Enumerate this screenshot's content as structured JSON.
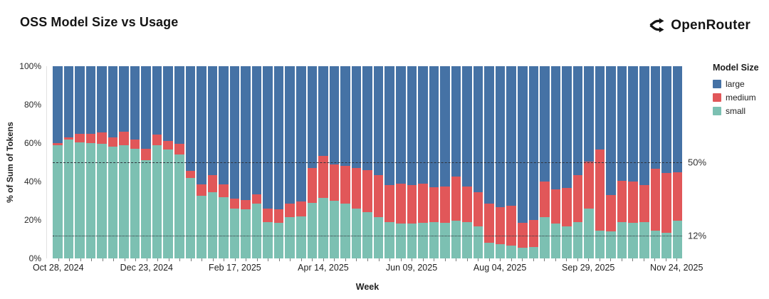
{
  "title": "OSS Model Size vs Usage",
  "logo": {
    "text": "OpenRouter"
  },
  "legend": {
    "title": "Model Size",
    "items": [
      {
        "label": "large",
        "color": "#4572a5"
      },
      {
        "label": "medium",
        "color": "#e15759"
      },
      {
        "label": "small",
        "color": "#7cc0b2"
      }
    ]
  },
  "y_axis": {
    "title": "% of Sum of Tokens",
    "ticks": [
      "0%",
      "20%",
      "40%",
      "60%",
      "80%",
      "100%"
    ],
    "tick_values": [
      0,
      20,
      40,
      60,
      80,
      100
    ]
  },
  "x_axis": {
    "title": "Week",
    "tick_labels": [
      "Oct 28, 2024",
      "Dec 23, 2024",
      "Feb 17, 2025",
      "Apr 14, 2025",
      "Jun 09, 2025",
      "Aug 04, 2025",
      "Sep 29, 2025",
      "Nov 24, 2025"
    ],
    "tick_week_indices": [
      0,
      8,
      16,
      24,
      32,
      40,
      48,
      56
    ]
  },
  "reference_lines": [
    {
      "value": 50,
      "label": "50%",
      "style": "dashed"
    },
    {
      "value": 12,
      "label": "12%",
      "style": "dotted"
    }
  ],
  "chart_data": {
    "type": "bar",
    "stacked": true,
    "stack_total": 100,
    "title": "OSS Model Size vs Usage",
    "xlabel": "Week",
    "ylabel": "% of Sum of Tokens",
    "ylim": [
      0,
      100
    ],
    "grid": false,
    "legend_position": "right",
    "x": [
      "2024-10-28",
      "2024-11-04",
      "2024-11-11",
      "2024-11-18",
      "2024-11-25",
      "2024-12-02",
      "2024-12-09",
      "2024-12-16",
      "2024-12-23",
      "2024-12-30",
      "2025-01-06",
      "2025-01-13",
      "2025-01-20",
      "2025-01-27",
      "2025-02-03",
      "2025-02-10",
      "2025-02-17",
      "2025-02-24",
      "2025-03-03",
      "2025-03-10",
      "2025-03-17",
      "2025-03-24",
      "2025-03-31",
      "2025-04-07",
      "2025-04-14",
      "2025-04-21",
      "2025-04-28",
      "2025-05-05",
      "2025-05-12",
      "2025-05-19",
      "2025-05-26",
      "2025-06-02",
      "2025-06-09",
      "2025-06-16",
      "2025-06-23",
      "2025-06-30",
      "2025-07-07",
      "2025-07-14",
      "2025-07-21",
      "2025-07-28",
      "2025-08-04",
      "2025-08-11",
      "2025-08-18",
      "2025-08-25",
      "2025-09-01",
      "2025-09-08",
      "2025-09-15",
      "2025-09-22",
      "2025-09-29",
      "2025-10-06",
      "2025-10-13",
      "2025-10-20",
      "2025-10-27",
      "2025-11-03",
      "2025-11-10",
      "2025-11-17",
      "2025-11-24"
    ],
    "series": [
      {
        "name": "small",
        "color": "#7cc0b2",
        "values": [
          59,
          62,
          60.5,
          60,
          59.5,
          58,
          59,
          57,
          51,
          59,
          56.5,
          54,
          42,
          32.5,
          34.5,
          32,
          26,
          25.5,
          28.5,
          19,
          18.5,
          21.5,
          22,
          29,
          31.5,
          30,
          28.5,
          26,
          24,
          21.5,
          19,
          18,
          18,
          18.5,
          19,
          18.5,
          19.5,
          19,
          16.5,
          8,
          7.5,
          6.5,
          5.5,
          6,
          21.5,
          18,
          16.5,
          19,
          26,
          14.5,
          14,
          19,
          18.5,
          19,
          14.5,
          13.5,
          19.5
        ]
      },
      {
        "name": "medium",
        "color": "#e15759",
        "values": [
          1,
          1,
          4.5,
          5,
          6,
          5,
          7,
          5,
          6,
          5.5,
          4.5,
          5.5,
          3.5,
          6,
          9,
          6.5,
          5,
          5,
          5,
          7,
          7,
          7,
          7.5,
          18,
          22,
          19,
          19.5,
          21,
          22,
          22,
          19,
          21,
          20,
          20.5,
          18,
          19,
          23,
          18.5,
          18,
          20.5,
          19,
          21,
          13,
          14,
          18.5,
          18,
          20,
          24.5,
          24.5,
          42,
          19,
          21.5,
          21.5,
          19,
          32,
          31,
          25.5
        ]
      },
      {
        "name": "large",
        "color": "#4572a5",
        "values": [
          40,
          37,
          35,
          35,
          34.5,
          37,
          34,
          38,
          43,
          35.5,
          39,
          40.5,
          54.5,
          61.5,
          56.5,
          61.5,
          69,
          69.5,
          66.5,
          74,
          74.5,
          71.5,
          70.5,
          53,
          46.5,
          51,
          52,
          53,
          54,
          56.5,
          62,
          61,
          62,
          61,
          63,
          62.5,
          57.5,
          62.5,
          65.5,
          71.5,
          73.5,
          72.5,
          81.5,
          80,
          60,
          64,
          63.5,
          56.5,
          49.5,
          43.5,
          67,
          59.5,
          60,
          62,
          53.5,
          55.5,
          55
        ]
      }
    ]
  }
}
